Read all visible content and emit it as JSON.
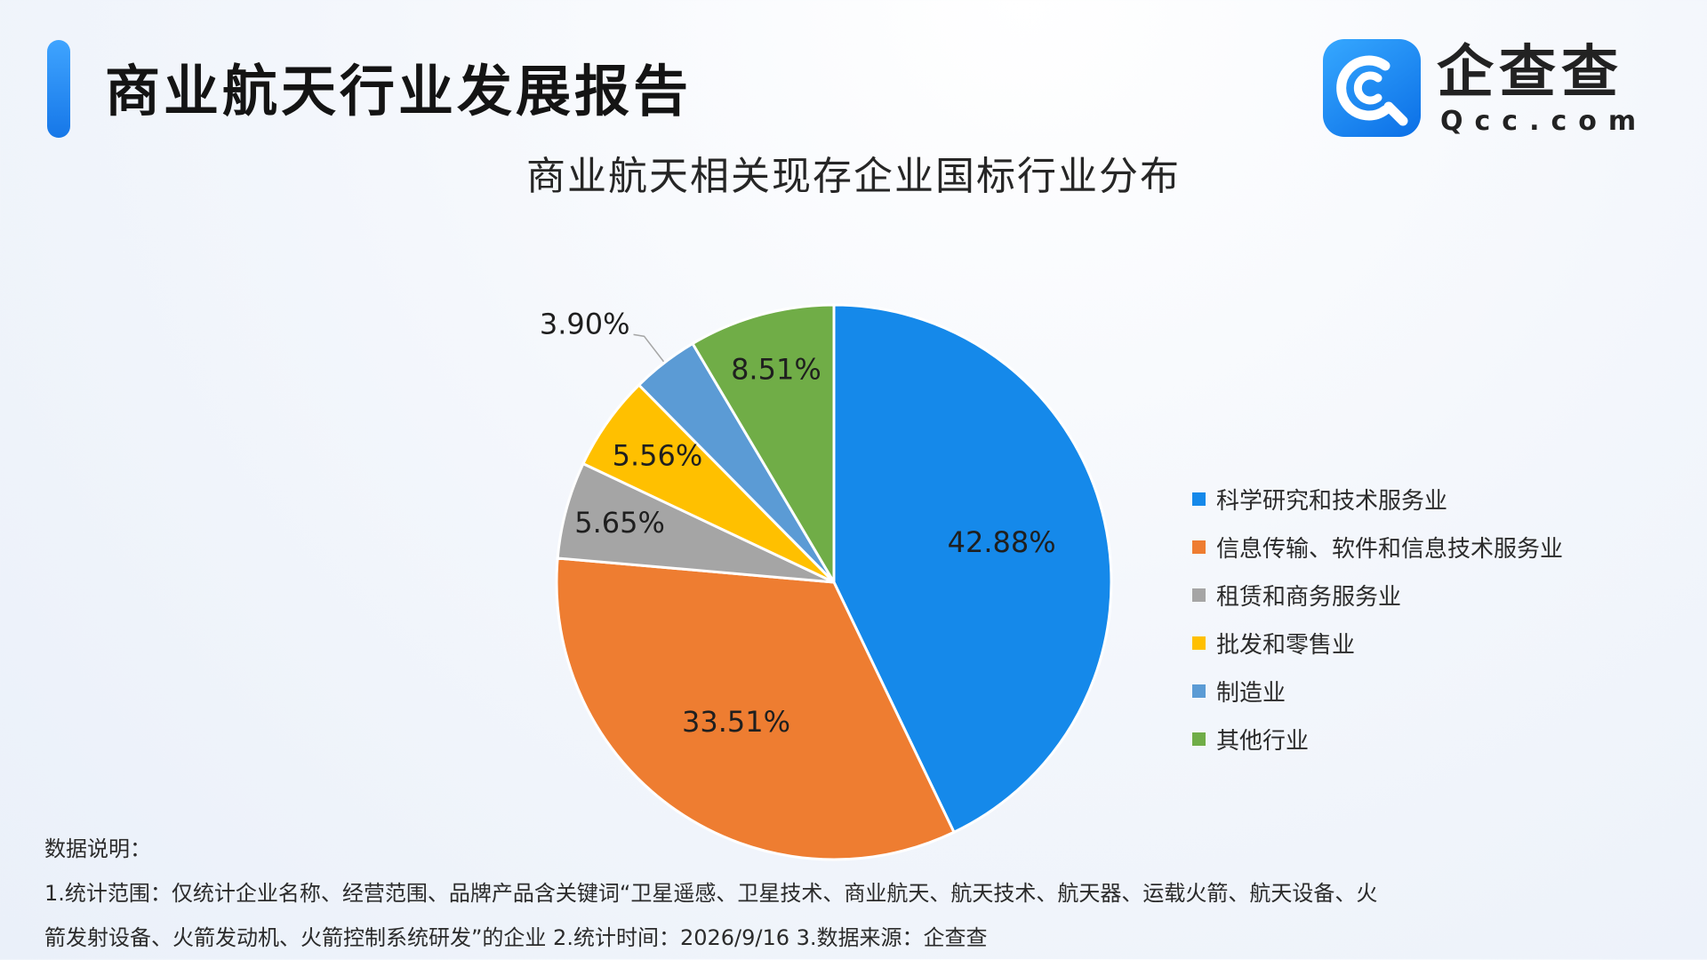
{
  "header": {
    "title": "商业航天行业发展报告",
    "logo_name": "企查查",
    "logo_domain": "Qcc.com"
  },
  "chart_data": {
    "type": "pie",
    "title": "商业航天相关现存企业国标行业分布",
    "legend_position": "right",
    "slices": [
      {
        "label": "科学研究和技术服务业",
        "value": 42.88,
        "display": "42.88%",
        "color": "#1589ea"
      },
      {
        "label": "信息传输、软件和信息技术服务业",
        "value": 33.51,
        "display": "33.51%",
        "color": "#ee7d31"
      },
      {
        "label": "租赁和商务服务业",
        "value": 5.65,
        "display": "5.65%",
        "color": "#a5a5a5"
      },
      {
        "label": "批发和零售业",
        "value": 5.56,
        "display": "5.56%",
        "color": "#ffc000"
      },
      {
        "label": "制造业",
        "value": 3.9,
        "display": "3.90%",
        "color": "#5b9bd5"
      },
      {
        "label": "其他行业",
        "value": 8.51,
        "display": "8.51%",
        "color": "#70ad47"
      }
    ]
  },
  "notes": {
    "heading": "数据说明：",
    "line1": "1.统计范围：仅统计企业名称、经营范围、品牌产品含关键词“卫星遥感、卫星技术、商业航天、航天技术、航天器、运载火箭、航天设备、火",
    "line2": "箭发射设备、火箭发动机、火箭控制系统研发”的企业 2.统计时间：2026/9/16 3.数据来源：企查查"
  }
}
